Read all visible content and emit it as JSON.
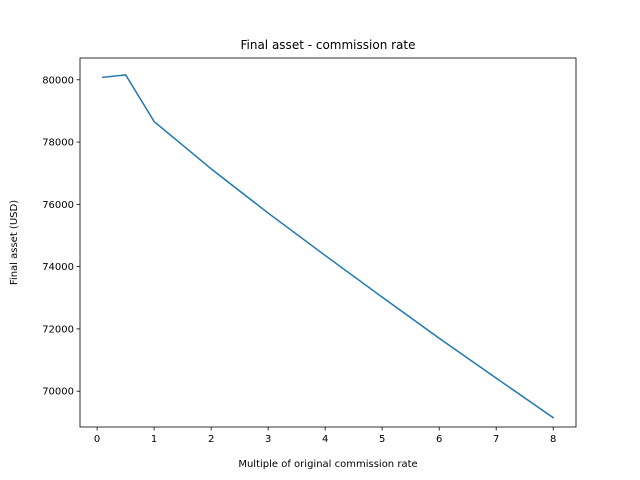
{
  "chart_data": {
    "type": "line",
    "title": "Final asset - commission rate",
    "xlabel": "Multiple of original commission rate",
    "ylabel": "Final asset (USD)",
    "xlim": [
      -0.3,
      8.4
    ],
    "ylim": [
      68850,
      80700
    ],
    "xticks": [
      0,
      1,
      2,
      3,
      4,
      5,
      6,
      7,
      8
    ],
    "xtick_labels": [
      "0",
      "1",
      "2",
      "3",
      "4",
      "5",
      "6",
      "7",
      "8"
    ],
    "yticks": [
      70000,
      72000,
      74000,
      76000,
      78000,
      80000
    ],
    "ytick_labels": [
      "70000",
      "72000",
      "74000",
      "76000",
      "78000",
      "80000"
    ],
    "grid": false,
    "series": [
      {
        "color": "#1f77b4",
        "x": [
          0.1,
          0.5,
          1,
          2,
          3,
          4,
          5,
          6,
          7,
          8
        ],
        "y": [
          80080,
          80160,
          78660,
          77140,
          75720,
          74360,
          73020,
          71700,
          70420,
          69150
        ]
      }
    ]
  }
}
